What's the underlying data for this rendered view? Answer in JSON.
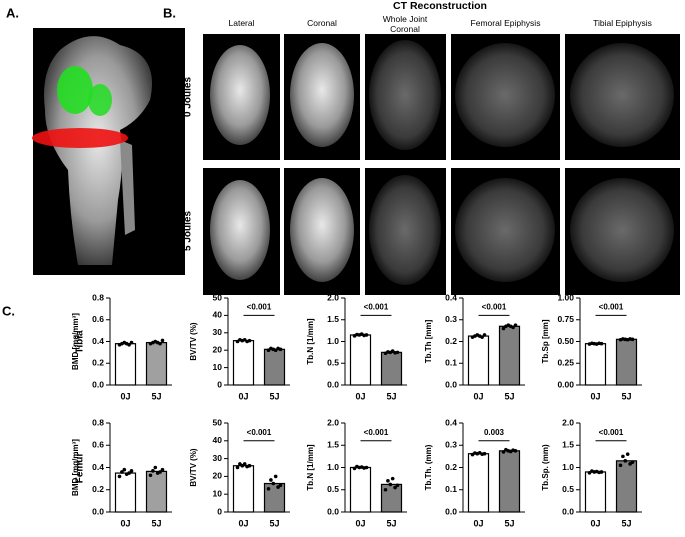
{
  "panels": {
    "a": "A.",
    "b": "B.",
    "c": "C."
  },
  "ct_title": "CT Reconstruction",
  "ct_columns": [
    "Lateral",
    "Coronal",
    "Whole Joint Coronal",
    "Femoral Epiphysis",
    "Tibial Epiphysis"
  ],
  "ct_rows": [
    "0 Joules",
    "5 Joules"
  ],
  "row_labels": [
    "Tibia",
    "Femur"
  ],
  "chart_data": [
    {
      "type": "bar",
      "ylabel": "BMD [mg/mm³]",
      "categories": [
        "0J",
        "5J"
      ],
      "values": [
        0.38,
        0.39
      ],
      "colors": [
        "#ffffff",
        "#a0a0a0"
      ],
      "points": [
        [
          0.37,
          0.38,
          0.39,
          0.38,
          0.37,
          0.39
        ],
        [
          0.38,
          0.39,
          0.4,
          0.39,
          0.38,
          0.41
        ]
      ],
      "ylim": [
        0,
        0.8
      ],
      "yticks": [
        {
          "value": 0,
          "label": "0.0"
        },
        0.2,
        0.4,
        0.6,
        0.8
      ]
    },
    {
      "type": "bar",
      "ylabel": "BV/TV (%)",
      "categories": [
        "0J",
        "5J"
      ],
      "values": [
        25.5,
        20.5
      ],
      "colors": [
        "#ffffff",
        "#808080"
      ],
      "points": [
        [
          25,
          26,
          25.5,
          26,
          25,
          25.5
        ],
        [
          20,
          21,
          20.5,
          20,
          21,
          20.5
        ]
      ],
      "ylim": [
        0,
        50
      ],
      "yticks": [
        0,
        10,
        20,
        30,
        40,
        50
      ],
      "annotation": "<0.001"
    },
    {
      "type": "bar",
      "ylabel": "Tb.N [1/mm]",
      "categories": [
        "0J",
        "5J"
      ],
      "values": [
        1.15,
        0.75
      ],
      "colors": [
        "#ffffff",
        "#808080"
      ],
      "points": [
        [
          1.13,
          1.16,
          1.15,
          1.17,
          1.14,
          1.15
        ],
        [
          0.73,
          0.76,
          0.75,
          0.78,
          0.74,
          0.75
        ]
      ],
      "ylim": [
        0,
        2.0
      ],
      "yticks": [
        {
          "value": 0,
          "label": "0.0"
        },
        0.5,
        {
          "value": 1,
          "label": "1.0"
        },
        1.5,
        {
          "value": 2,
          "label": "2.0"
        }
      ],
      "annotation": "<0.001"
    },
    {
      "type": "bar",
      "ylabel": "Tb.Th [mm]",
      "categories": [
        "0J",
        "5J"
      ],
      "values": [
        0.225,
        0.27
      ],
      "colors": [
        "#ffffff",
        "#808080"
      ],
      "points": [
        [
          0.22,
          0.225,
          0.23,
          0.225,
          0.22,
          0.23
        ],
        [
          0.26,
          0.27,
          0.275,
          0.27,
          0.265,
          0.275
        ]
      ],
      "ylim": [
        0,
        0.4
      ],
      "yticks": [
        {
          "value": 0,
          "label": "0.0"
        },
        0.1,
        0.2,
        0.3,
        0.4
      ],
      "annotation": "<0.001"
    },
    {
      "type": "bar",
      "ylabel": "Tb.Sp [mm]",
      "categories": [
        "0J",
        "5J"
      ],
      "values": [
        0.475,
        0.525
      ],
      "colors": [
        "#ffffff",
        "#808080"
      ],
      "points": [
        [
          0.47,
          0.48,
          0.475,
          0.47,
          0.48,
          0.475
        ],
        [
          0.52,
          0.53,
          0.525,
          0.52,
          0.53,
          0.525
        ]
      ],
      "ylim": [
        0,
        1.0
      ],
      "yticks": [
        {
          "value": 0,
          "label": "0.00"
        },
        0.25,
        {
          "value": 0.5,
          "label": "0.50"
        },
        0.75,
        {
          "value": 1,
          "label": "1.00"
        }
      ],
      "annotation": "<0.001"
    },
    {
      "type": "bar",
      "ylabel": "BMD [mg/mm³]",
      "categories": [
        "0J",
        "5J"
      ],
      "values": [
        0.35,
        0.365
      ],
      "colors": [
        "#ffffff",
        "#a0a0a0"
      ],
      "points": [
        [
          0.32,
          0.36,
          0.38,
          0.34,
          0.35,
          0.37
        ],
        [
          0.33,
          0.37,
          0.4,
          0.35,
          0.36,
          0.38
        ]
      ],
      "ylim": [
        0,
        0.8
      ],
      "yticks": [
        {
          "value": 0,
          "label": "0.0"
        },
        0.2,
        0.4,
        0.6,
        0.8
      ]
    },
    {
      "type": "bar",
      "ylabel": "BV/TV (%)",
      "categories": [
        "0J",
        "5J"
      ],
      "values": [
        26,
        16
      ],
      "colors": [
        "#ffffff",
        "#808080"
      ],
      "points": [
        [
          25,
          27,
          26,
          27,
          25.5,
          26
        ],
        [
          13,
          18,
          16,
          20,
          14,
          15
        ]
      ],
      "ylim": [
        0,
        50
      ],
      "yticks": [
        0,
        10,
        20,
        30,
        40,
        50
      ],
      "annotation": "<0.001"
    },
    {
      "type": "bar",
      "ylabel": "Tb.N [1/mm]",
      "categories": [
        "0J",
        "5J"
      ],
      "values": [
        1.0,
        0.62
      ],
      "colors": [
        "#ffffff",
        "#808080"
      ],
      "points": [
        [
          0.98,
          1.02,
          1.0,
          1.01,
          0.99,
          1.0
        ],
        [
          0.5,
          0.7,
          0.62,
          0.75,
          0.55,
          0.6
        ]
      ],
      "ylim": [
        0,
        2.0
      ],
      "yticks": [
        {
          "value": 0,
          "label": "0.0"
        },
        0.5,
        {
          "value": 1,
          "label": "1.0"
        },
        1.5,
        {
          "value": 2,
          "label": "2.0"
        }
      ],
      "annotation": "<0.001"
    },
    {
      "type": "bar",
      "ylabel": "Tb.Th. (mm)",
      "categories": [
        "0J",
        "5J"
      ],
      "values": [
        0.262,
        0.275
      ],
      "colors": [
        "#ffffff",
        "#808080"
      ],
      "points": [
        [
          0.258,
          0.265,
          0.262,
          0.266,
          0.26,
          0.262
        ],
        [
          0.27,
          0.28,
          0.275,
          0.272,
          0.278,
          0.275
        ]
      ],
      "ylim": [
        0,
        0.4
      ],
      "yticks": [
        {
          "value": 0,
          "label": "0.0"
        },
        0.1,
        0.2,
        0.3,
        0.4
      ],
      "annotation": "0.003"
    },
    {
      "type": "bar",
      "ylabel": "Tb.Sp. (mm)",
      "categories": [
        "0J",
        "5J"
      ],
      "values": [
        0.9,
        1.15
      ],
      "colors": [
        "#ffffff",
        "#808080"
      ],
      "points": [
        [
          0.88,
          0.92,
          0.9,
          0.91,
          0.89,
          0.9
        ],
        [
          1.05,
          1.25,
          1.15,
          1.3,
          1.08,
          1.12
        ]
      ],
      "ylim": [
        0,
        2.0
      ],
      "yticks": [
        {
          "value": 0,
          "label": "0.0"
        },
        0.5,
        {
          "value": 1,
          "label": "1.0"
        },
        1.5,
        {
          "value": 2,
          "label": "2.0"
        }
      ],
      "annotation": "<0.001"
    }
  ]
}
